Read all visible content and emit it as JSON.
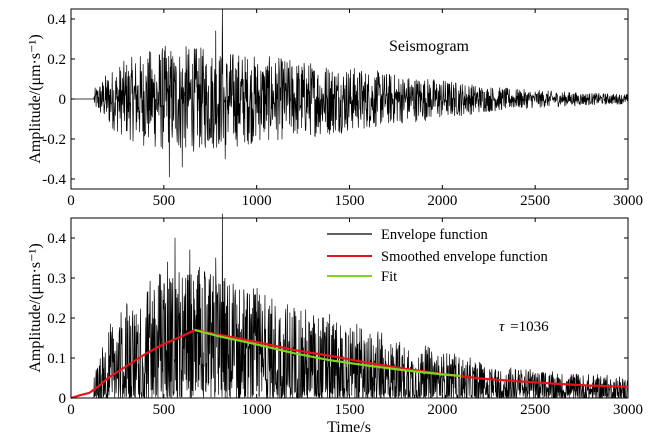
{
  "chart_data": [
    {
      "type": "line",
      "id": "seismogram",
      "annotation": "Seismogram",
      "ylabel": "Amplitude/(μm·s⁻¹)",
      "xlabel": "",
      "xlim": [
        0,
        3000
      ],
      "ylim": [
        -0.45,
        0.45
      ],
      "xticks": [
        0,
        500,
        1000,
        1500,
        2000,
        2500,
        3000
      ],
      "yticks": [
        -0.4,
        -0.2,
        0,
        0.2,
        0.4
      ],
      "ytick_labels": [
        "-0.4",
        "-0.2",
        "0",
        "0.2",
        "0.4"
      ],
      "series": [
        {
          "color": "#000000",
          "signal": "noise-like waveform",
          "onset": 125,
          "envelope": {
            "x": [
              125,
              200,
              300,
              400,
              500,
              600,
              700,
              800,
              900,
              1000,
              1200,
              1400,
              1600,
              1800,
              2000,
              2200,
              2400,
              2600,
              2800,
              3000
            ],
            "y": [
              0.05,
              0.14,
              0.2,
              0.24,
              0.27,
              0.27,
              0.26,
              0.25,
              0.24,
              0.22,
              0.2,
              0.18,
              0.15,
              0.12,
              0.1,
              0.07,
              0.05,
              0.04,
              0.03,
              0.025
            ]
          },
          "peaks": [
            {
              "x": 815,
              "y": 0.45
            },
            {
              "x": 830,
              "y": -0.3
            },
            {
              "x": 530,
              "y": -0.39
            },
            {
              "x": 780,
              "y": 0.34
            },
            {
              "x": 600,
              "y": -0.34
            }
          ]
        }
      ]
    },
    {
      "type": "line",
      "id": "envelope",
      "ylabel": "Amplitude/(μm·s⁻¹)",
      "xlabel": "Time/s",
      "xlim": [
        0,
        3000
      ],
      "ylim": [
        0,
        0.45
      ],
      "xticks": [
        0,
        500,
        1000,
        1500,
        2000,
        2500,
        3000
      ],
      "yticks": [
        0,
        0.1,
        0.2,
        0.3,
        0.4
      ],
      "ytick_labels": [
        "0",
        "0.1",
        "0.2",
        "0.3",
        "0.4"
      ],
      "legend_position": "top-right",
      "annotation": {
        "symbol": "τ",
        "value": "=1036"
      },
      "series": [
        {
          "name": "Envelope function",
          "color": "#000000",
          "onset": 125,
          "envelope": {
            "x": [
              125,
              200,
              300,
              400,
              500,
              600,
              700,
              800,
              900,
              1000,
              1200,
              1400,
              1600,
              1800,
              2000,
              2200,
              2400,
              2600,
              2800,
              3000
            ],
            "y": [
              0.05,
              0.17,
              0.22,
              0.26,
              0.3,
              0.3,
              0.3,
              0.29,
              0.27,
              0.25,
              0.22,
              0.19,
              0.16,
              0.13,
              0.11,
              0.085,
              0.07,
              0.06,
              0.055,
              0.05
            ]
          },
          "peaks": [
            {
              "x": 815,
              "y": 0.46
            },
            {
              "x": 640,
              "y": 0.37
            },
            {
              "x": 780,
              "y": 0.35
            },
            {
              "x": 560,
              "y": 0.4
            },
            {
              "x": 520,
              "y": 0.34
            }
          ]
        },
        {
          "name": "Smoothed envelope function",
          "color": "#e8141c",
          "x": [
            0,
            50,
            100,
            150,
            200,
            300,
            400,
            500,
            600,
            667,
            800,
            1000,
            1200,
            1400,
            1600,
            1800,
            2000,
            2200,
            2400,
            2600,
            2800,
            3000
          ],
          "y": [
            0.0,
            0.007,
            0.013,
            0.03,
            0.05,
            0.08,
            0.11,
            0.135,
            0.155,
            0.17,
            0.158,
            0.14,
            0.12,
            0.105,
            0.088,
            0.073,
            0.06,
            0.049,
            0.042,
            0.036,
            0.031,
            0.028
          ]
        },
        {
          "name": "Fit",
          "color": "#7ed321",
          "x": [
            667,
            800,
            1000,
            1200,
            1400,
            1600,
            1800,
            2000,
            2100
          ],
          "y": [
            0.17,
            0.154,
            0.134,
            0.112,
            0.094,
            0.081,
            0.069,
            0.059,
            0.055
          ]
        }
      ]
    }
  ]
}
